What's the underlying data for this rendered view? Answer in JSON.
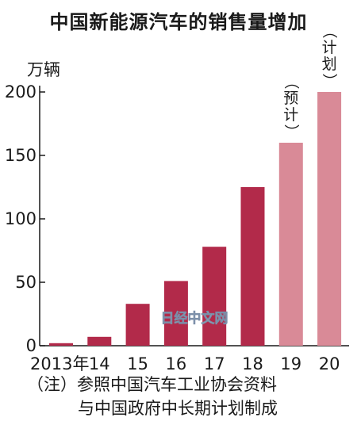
{
  "chart_data": {
    "type": "bar",
    "title": "中国新能源汽车的销售量增加",
    "ylabel": "万辆",
    "categories": [
      "2013年",
      "14",
      "15",
      "16",
      "17",
      "18",
      "19",
      "20"
    ],
    "values": [
      2,
      7,
      33,
      51,
      78,
      125,
      160,
      200
    ],
    "ylim": [
      0,
      200
    ],
    "yticks": [
      0,
      50,
      100,
      150,
      200
    ],
    "grid": false,
    "colors": {
      "actual": "#b22a4a",
      "plan": "#d98a97"
    },
    "plan_flags": [
      false,
      false,
      false,
      false,
      false,
      false,
      true,
      true
    ],
    "annotations": [
      {
        "category": "19",
        "text": "（预计）"
      },
      {
        "category": "20",
        "text": "（计划）"
      }
    ],
    "note": {
      "line1": "（注）参照中国汽车工业协会资料",
      "line2": "与中国政府中长期计划制成"
    },
    "watermark": "日经中文网"
  }
}
